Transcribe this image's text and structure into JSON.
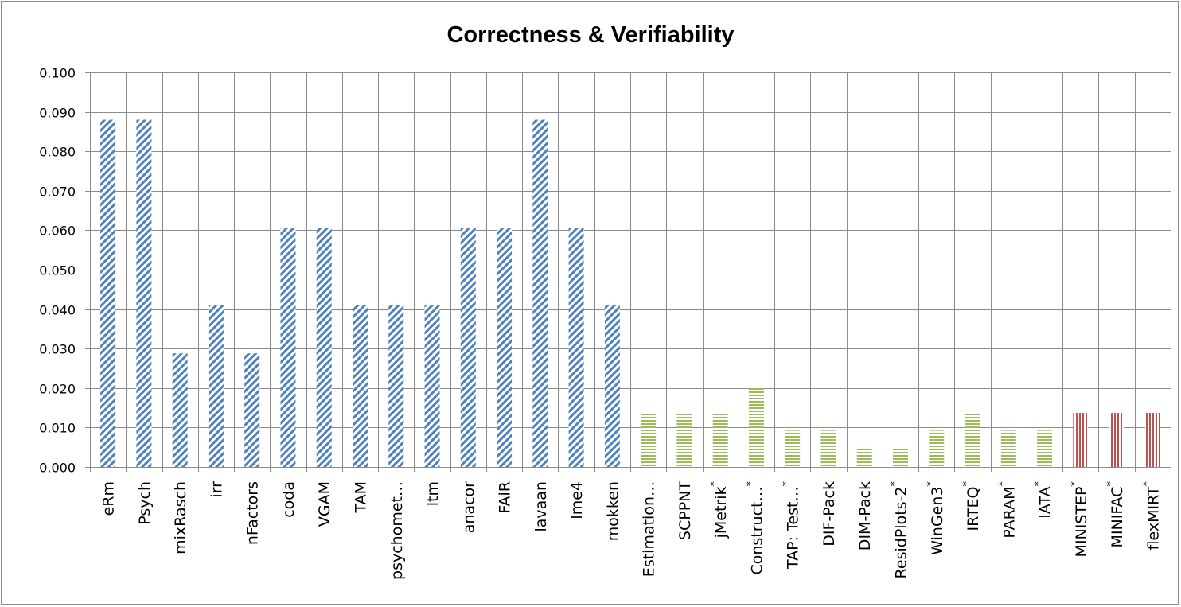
{
  "chart_data": {
    "type": "bar",
    "title": "Correctness & Verifiability",
    "xlabel": "",
    "ylabel": "",
    "ylim": [
      0,
      0.1
    ],
    "yticks": [
      "0.000",
      "0.010",
      "0.020",
      "0.030",
      "0.040",
      "0.050",
      "0.060",
      "0.070",
      "0.080",
      "0.090",
      "0.100"
    ],
    "grid": true,
    "legend": "none",
    "categories": [
      "eRm",
      "Psych",
      "mixRasch",
      "irr",
      "nFactors",
      "coda",
      "VGAM",
      "TAM",
      "psychomet…",
      "ltm",
      "anacor",
      "FAiR",
      "lavaan",
      "lme4",
      "mokken",
      "Estimation…",
      "SCPPNT",
      "jMetrik*",
      "Construct…*",
      "TAP: Test…*",
      "DIF-Pack",
      "DIM-Pack",
      "ResidPlots-2*",
      "WinGen3*",
      "IRTEQ*",
      "PARAM*",
      "IATA*",
      "MINISTEP*",
      "MINIFAC*",
      "flexMIRT*"
    ],
    "values": [
      0.088,
      0.088,
      0.0288,
      0.041,
      0.0288,
      0.0605,
      0.0605,
      0.041,
      0.041,
      0.041,
      0.0605,
      0.0605,
      0.088,
      0.0605,
      0.041,
      0.0137,
      0.0137,
      0.0137,
      0.02,
      0.0092,
      0.0092,
      0.0045,
      0.0048,
      0.0092,
      0.0137,
      0.0092,
      0.0092,
      0.0137,
      0.0137,
      0.0137
    ],
    "groups": [
      "blue",
      "blue",
      "blue",
      "blue",
      "blue",
      "blue",
      "blue",
      "blue",
      "blue",
      "blue",
      "blue",
      "blue",
      "blue",
      "blue",
      "blue",
      "green",
      "green",
      "green",
      "green",
      "green",
      "green",
      "green",
      "green",
      "green",
      "green",
      "green",
      "green",
      "red",
      "red",
      "red"
    ],
    "colors": {
      "blue": "#4F81BD",
      "green": "#9BBB59",
      "red": "#C0504D"
    },
    "patterns": {
      "blue": "diagonal-stripes",
      "green": "horizontal-stripes",
      "red": "vertical-stripes"
    }
  }
}
